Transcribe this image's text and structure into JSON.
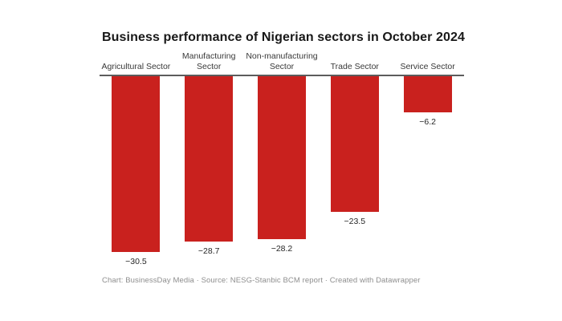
{
  "title": "Business performance of Nigerian sectors in October 2024",
  "footer": "Chart: BusinessDay Media · Source: NESG-Stanbic BCM report · Created with Datawrapper",
  "chart_data": {
    "type": "bar",
    "orientation": "vertical",
    "title": "Business performance of Nigerian sectors in October 2024",
    "categories": [
      "Agricultural Sector",
      "Manufacturing Sector",
      "Non-manufacturing Sector",
      "Trade Sector",
      "Service Sector"
    ],
    "category_display": [
      "Agricultural Sector",
      "Manufacturing\nSector",
      "Non-manufacturing\nSector",
      "Trade Sector",
      "Service Sector"
    ],
    "values": [
      -30.5,
      -28.7,
      -28.2,
      -23.5,
      -6.2
    ],
    "value_labels": [
      "−30.5",
      "−28.7",
      "−28.2",
      "−23.5",
      "−6.2"
    ],
    "bar_color": "#c9211e",
    "baseline_value": 0,
    "ylim": [
      -31,
      0
    ],
    "xlabel": "",
    "ylabel": "",
    "grid": false,
    "legend": "none",
    "value_label_position": "below-bar",
    "category_label_position": "above-baseline"
  }
}
